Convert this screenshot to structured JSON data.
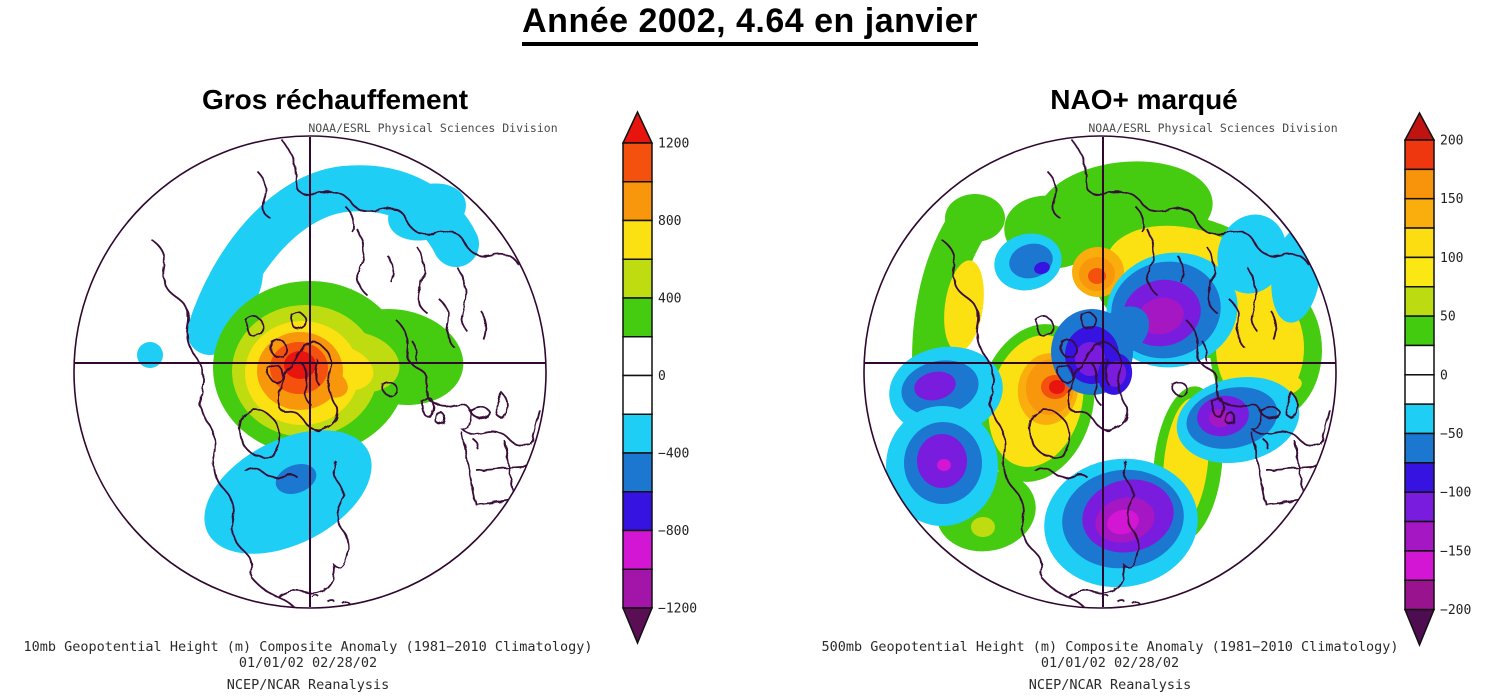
{
  "title": "Année 2002, 4.64 en janvier",
  "panels": [
    {
      "heading": "Gros réchauffement",
      "credit": "NOAA/ESRL Physical Sciences Division",
      "captions": [
        "10mb Geopotential Height (m) Composite Anomaly (1981−2010 Climatology)",
        "01/01/02 02/28/02",
        "NCEP/NCAR Reanalysis"
      ],
      "colorbar": {
        "tick_labels": [
          "1200",
          "800",
          "400",
          "0",
          "−400",
          "−800",
          "−1200"
        ],
        "ticks_every_n_segments": 2,
        "segment_colors": [
          "#F4500E",
          "#F8970C",
          "#FBE112",
          "#BFDC10",
          "#45CC10",
          "#FFFFFF",
          "#FFFFFF",
          "#1ECEF4",
          "#1C77D0",
          "#3613E1",
          "#D316D3",
          "#A315A8"
        ],
        "arrow_top_color": "#E8150E",
        "arrow_bottom_color": "#5A0F55"
      }
    },
    {
      "heading": "NAO+ marqué",
      "credit": "NOAA/ESRL Physical Sciences Division",
      "captions": [
        "500mb Geopotential Height (m) Composite Anomaly (1981−2010 Climatology)",
        "01/01/02 02/28/02",
        "NCEP/NCAR Reanalysis"
      ],
      "colorbar": {
        "tick_labels": [
          "200",
          "150",
          "100",
          "50",
          "0",
          "−50",
          "−100",
          "−150",
          "−200"
        ],
        "ticks_every_n_segments": 2,
        "segment_colors": [
          "#EE360F",
          "#F8930C",
          "#F9AE0D",
          "#FBDD11",
          "#FBE714",
          "#BCDB10",
          "#43CB10",
          "#FFFFFF",
          "#FFFFFF",
          "#1ECEF4",
          "#1C77D0",
          "#3613E1",
          "#7A1CDE",
          "#A617C4",
          "#D316D3",
          "#99128E"
        ],
        "arrow_top_color": "#C11410",
        "arrow_bottom_color": "#4E0D50"
      }
    }
  ],
  "chart_data": [
    {
      "type": "heatmap",
      "panel": "left",
      "title": "Gros réchauffement",
      "variable": "10mb Geopotential Height (m) Composite Anomaly",
      "climatology_baseline": "1981-2010",
      "date_range": "01/01/02 02/28/02",
      "dataset": "NCEP/NCAR Reanalysis",
      "projection": "Northern Hemisphere polar stereographic",
      "units": "m",
      "colorbar_ticks": [
        1200,
        800,
        400,
        0,
        -400,
        -800,
        -1200
      ],
      "contour_interval_m": 200,
      "anomaly_centers": [
        {
          "location": "stratospheric polar region near Greenland / pole",
          "sign": "positive",
          "peak_m": 1300
        },
        {
          "location": "band across Alaska and northern Siberia",
          "sign": "negative",
          "peak_m": -300
        },
        {
          "location": "southern United States / Gulf of Mexico",
          "sign": "negative",
          "peak_m": -500
        },
        {
          "location": "small spot in North Pacific west of centre",
          "sign": "negative",
          "peak_m": -300
        }
      ]
    },
    {
      "type": "heatmap",
      "panel": "right",
      "title": "NAO+ marqué",
      "variable": "500mb Geopotential Height (m) Composite Anomaly",
      "climatology_baseline": "1981-2010",
      "date_range": "01/01/02 02/28/02",
      "dataset": "NCEP/NCAR Reanalysis",
      "projection": "Northern Hemisphere polar stereographic",
      "units": "m",
      "colorbar_ticks": [
        200,
        150,
        100,
        50,
        0,
        -50,
        -100,
        -150,
        -200
      ],
      "contour_interval_m": 25,
      "anomaly_centers": [
        {
          "location": "eastern North America / western Atlantic",
          "sign": "negative",
          "peak_m": -150
        },
        {
          "location": "Europe / Mediterranean",
          "sign": "negative",
          "peak_m": -150
        },
        {
          "location": "central Siberia",
          "sign": "negative",
          "peak_m": -140
        },
        {
          "location": "Arctic near the pole",
          "sign": "negative",
          "peak_m": -110
        },
        {
          "location": "northeast Pacific (two lows)",
          "sign": "negative",
          "peak_m": -130
        },
        {
          "location": "Davis Strait / near Greenland",
          "sign": "positive",
          "peak_m": 200
        },
        {
          "location": "Arctic coast north of central Siberia",
          "sign": "positive",
          "peak_m": 200
        },
        {
          "location": "western North America ridge",
          "sign": "positive",
          "peak_m": 100
        },
        {
          "location": "central Asia / Middle East belt",
          "sign": "positive",
          "peak_m": 100
        }
      ]
    }
  ]
}
